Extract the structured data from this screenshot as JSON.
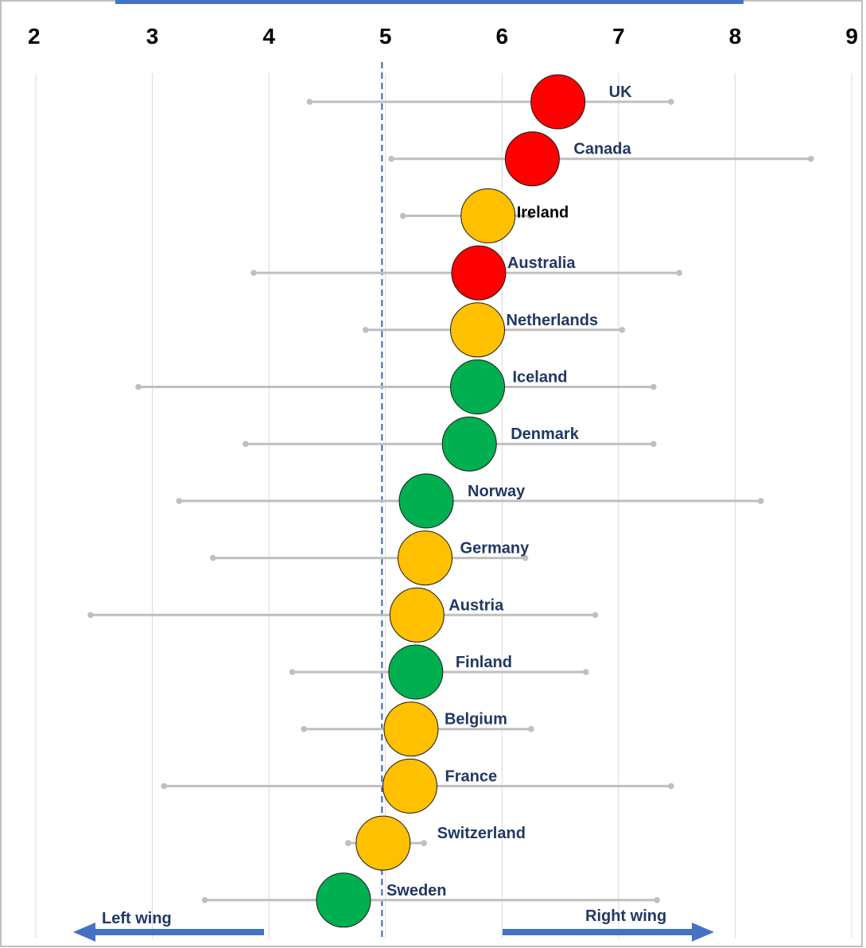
{
  "chart_data": {
    "type": "scatter",
    "x_ticks": [
      "2",
      "3",
      "4",
      "5",
      "6",
      "7",
      "8",
      "9"
    ],
    "xlim": [
      2,
      9
    ],
    "grid": "vertical",
    "reference_line": {
      "x": 4.97,
      "style": "dashed",
      "color": "#4472C4"
    },
    "points": [
      {
        "name": "UK",
        "x": 6.48,
        "range": [
          4.35,
          7.45
        ],
        "status": "red"
      },
      {
        "name": "Canada",
        "x": 6.26,
        "range": [
          5.05,
          8.65
        ],
        "status": "red"
      },
      {
        "name": "Ireland",
        "x": 5.88,
        "range": [
          5.15,
          6.24
        ],
        "status": "amber"
      },
      {
        "name": "Australia",
        "x": 5.8,
        "range": [
          3.87,
          7.52
        ],
        "status": "red"
      },
      {
        "name": "Netherlands",
        "x": 5.79,
        "range": [
          4.83,
          7.03
        ],
        "status": "amber"
      },
      {
        "name": "Iceland",
        "x": 5.79,
        "range": [
          2.88,
          7.3
        ],
        "status": "green"
      },
      {
        "name": "Denmark",
        "x": 5.72,
        "range": [
          3.8,
          7.3
        ],
        "status": "green"
      },
      {
        "name": "Norway",
        "x": 5.35,
        "range": [
          3.23,
          8.22
        ],
        "status": "green"
      },
      {
        "name": "Germany",
        "x": 5.34,
        "range": [
          3.52,
          6.2
        ],
        "status": "amber"
      },
      {
        "name": "Austria",
        "x": 5.27,
        "range": [
          2.47,
          6.8
        ],
        "status": "amber"
      },
      {
        "name": "Finland",
        "x": 5.26,
        "range": [
          4.2,
          6.72
        ],
        "status": "green"
      },
      {
        "name": "Belgium",
        "x": 5.22,
        "range": [
          4.3,
          6.25
        ],
        "status": "amber"
      },
      {
        "name": "France",
        "x": 5.21,
        "range": [
          3.1,
          7.45
        ],
        "status": "amber"
      },
      {
        "name": "Switzerland",
        "x": 4.98,
        "range": [
          4.68,
          5.33
        ],
        "status": "amber"
      },
      {
        "name": "Sweden",
        "x": 4.64,
        "range": [
          3.45,
          7.33
        ],
        "status": "green"
      }
    ],
    "status_colors": {
      "red": "#FF0000",
      "amber": "#FFC000",
      "green": "#00B050"
    },
    "label_colors": {
      "default": "#203864",
      "Ireland": "#000000"
    },
    "range_color": "#BFBFBF",
    "gridline_color": "#D9D9D9",
    "arrow_color": "#4472C4",
    "arrows": [
      {
        "label": "Left wing",
        "direction": "left"
      },
      {
        "label": "Right wing",
        "direction": "right"
      }
    ]
  }
}
